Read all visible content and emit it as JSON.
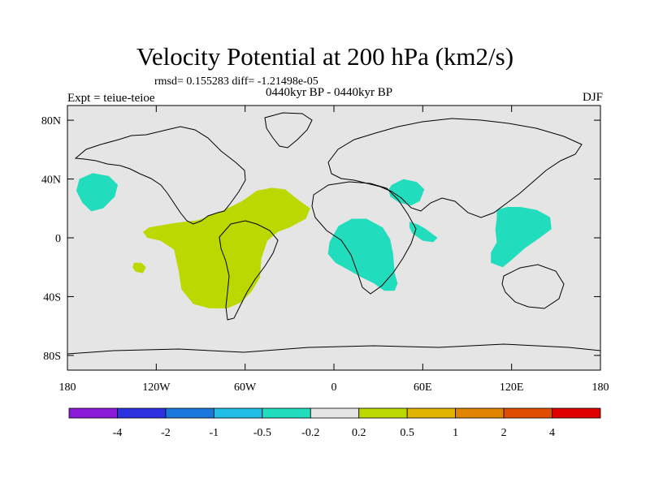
{
  "chart_data": {
    "type": "map-contour",
    "title": "Velocity Potential at 200 hPa (km2/s)",
    "stats_text": "rmsd= 0.155283  diff= -1.21498e-05",
    "period_text": "0440kyr BP - 0440kyr BP",
    "left_label": "Expt = teiue-teioe",
    "right_label": "DJF",
    "x_range": [
      -180,
      180
    ],
    "y_range": [
      -90,
      90
    ],
    "x_ticks": [
      {
        "value": -180,
        "label": "180"
      },
      {
        "value": -120,
        "label": "120W"
      },
      {
        "value": -60,
        "label": "60W"
      },
      {
        "value": 0,
        "label": "0"
      },
      {
        "value": 60,
        "label": "60E"
      },
      {
        "value": 120,
        "label": "120E"
      },
      {
        "value": 180,
        "label": "180"
      }
    ],
    "y_ticks": [
      {
        "value": 80,
        "label": "80N"
      },
      {
        "value": 40,
        "label": "40N"
      },
      {
        "value": 0,
        "label": "0"
      },
      {
        "value": -40,
        "label": "40S"
      },
      {
        "value": -80,
        "label": "80S"
      }
    ],
    "colorbar": {
      "labels": [
        "-4",
        "-2",
        "-1",
        "-0.5",
        "-0.2",
        "0.2",
        "0.5",
        "1",
        "2",
        "4"
      ],
      "colors": [
        "#8a1ad8",
        "#2c32e0",
        "#1a78dc",
        "#22bde6",
        "#22ddbd",
        "#e5e5e5",
        "#bbd800",
        "#e0b400",
        "#e08400",
        "#e04c00",
        "#e00000"
      ]
    },
    "regions": [
      {
        "name": "region-north-pacific-negative",
        "category": "-0.5 to -0.2",
        "color": "#22ddbd",
        "polygon": [
          [
            -172,
            40
          ],
          [
            -163,
            44
          ],
          [
            -152,
            42
          ],
          [
            -146,
            36
          ],
          [
            -148,
            28
          ],
          [
            -156,
            20
          ],
          [
            -164,
            18
          ],
          [
            -170,
            24
          ],
          [
            -174,
            32
          ]
        ]
      },
      {
        "name": "region-atlantic-south-america-positive",
        "category": "0.2 to 0.5",
        "color": "#bbd800",
        "polygon": [
          [
            -125,
            7
          ],
          [
            -108,
            10
          ],
          [
            -92,
            12
          ],
          [
            -76,
            18
          ],
          [
            -62,
            25
          ],
          [
            -52,
            32
          ],
          [
            -42,
            34
          ],
          [
            -33,
            33
          ],
          [
            -23,
            25
          ],
          [
            -16,
            20
          ],
          [
            -19,
            13
          ],
          [
            -30,
            7
          ],
          [
            -38,
            4
          ],
          [
            -45,
            -2
          ],
          [
            -49,
            -14
          ],
          [
            -50,
            -27
          ],
          [
            -56,
            -37
          ],
          [
            -63,
            -44
          ],
          [
            -72,
            -48
          ],
          [
            -84,
            -48
          ],
          [
            -95,
            -45
          ],
          [
            -103,
            -35
          ],
          [
            -105,
            -22
          ],
          [
            -108,
            -8
          ],
          [
            -117,
            -2
          ],
          [
            -126,
            0
          ],
          [
            -129,
            4
          ]
        ]
      },
      {
        "name": "region-south-pacific-small-positive",
        "category": "0.2 to 0.5",
        "color": "#bbd800",
        "polygon": [
          [
            -135,
            -17
          ],
          [
            -130,
            -17
          ],
          [
            -127,
            -20
          ],
          [
            -129,
            -24
          ],
          [
            -134,
            -23
          ],
          [
            -136,
            -20
          ]
        ]
      },
      {
        "name": "region-mediterranean-arabia-negative",
        "category": "-0.5 to -0.2",
        "color": "#22ddbd",
        "polygon": [
          [
            39,
            36
          ],
          [
            47,
            40
          ],
          [
            56,
            38
          ],
          [
            61,
            33
          ],
          [
            58,
            25
          ],
          [
            52,
            22
          ],
          [
            44,
            24
          ],
          [
            38,
            28
          ],
          [
            37,
            33
          ]
        ]
      },
      {
        "name": "region-africa-negative",
        "category": "-0.5 to -0.2",
        "color": "#22ddbd",
        "polygon": [
          [
            -3,
            -3
          ],
          [
            3,
            8
          ],
          [
            12,
            13
          ],
          [
            22,
            13
          ],
          [
            33,
            7
          ],
          [
            38,
            -1
          ],
          [
            40,
            -11
          ],
          [
            41,
            -24
          ],
          [
            43,
            -31
          ],
          [
            41,
            -36
          ],
          [
            34,
            -36
          ],
          [
            27,
            -31
          ],
          [
            17,
            -26
          ],
          [
            10,
            -22
          ],
          [
            1,
            -17
          ],
          [
            -4,
            -11
          ]
        ]
      },
      {
        "name": "region-arabian-sea-negative",
        "category": "-0.5 to -0.2",
        "color": "#22ddbd",
        "polygon": [
          [
            51,
            11
          ],
          [
            57,
            9
          ],
          [
            62,
            6
          ],
          [
            70,
            0
          ],
          [
            67,
            -3
          ],
          [
            60,
            -2
          ],
          [
            53,
            3
          ],
          [
            51,
            7
          ]
        ]
      },
      {
        "name": "region-maritime-continent-negative",
        "category": "-0.5 to -0.2",
        "color": "#22ddbd",
        "polygon": [
          [
            110,
            19
          ],
          [
            117,
            21
          ],
          [
            126,
            21
          ],
          [
            137,
            19
          ],
          [
            146,
            14
          ],
          [
            147,
            6
          ],
          [
            139,
            0
          ],
          [
            129,
            -7
          ],
          [
            120,
            -15
          ],
          [
            114,
            -20
          ],
          [
            106,
            -17
          ],
          [
            106,
            -10
          ],
          [
            110,
            -3
          ],
          [
            109,
            6
          ],
          [
            110,
            13
          ]
        ]
      }
    ]
  }
}
